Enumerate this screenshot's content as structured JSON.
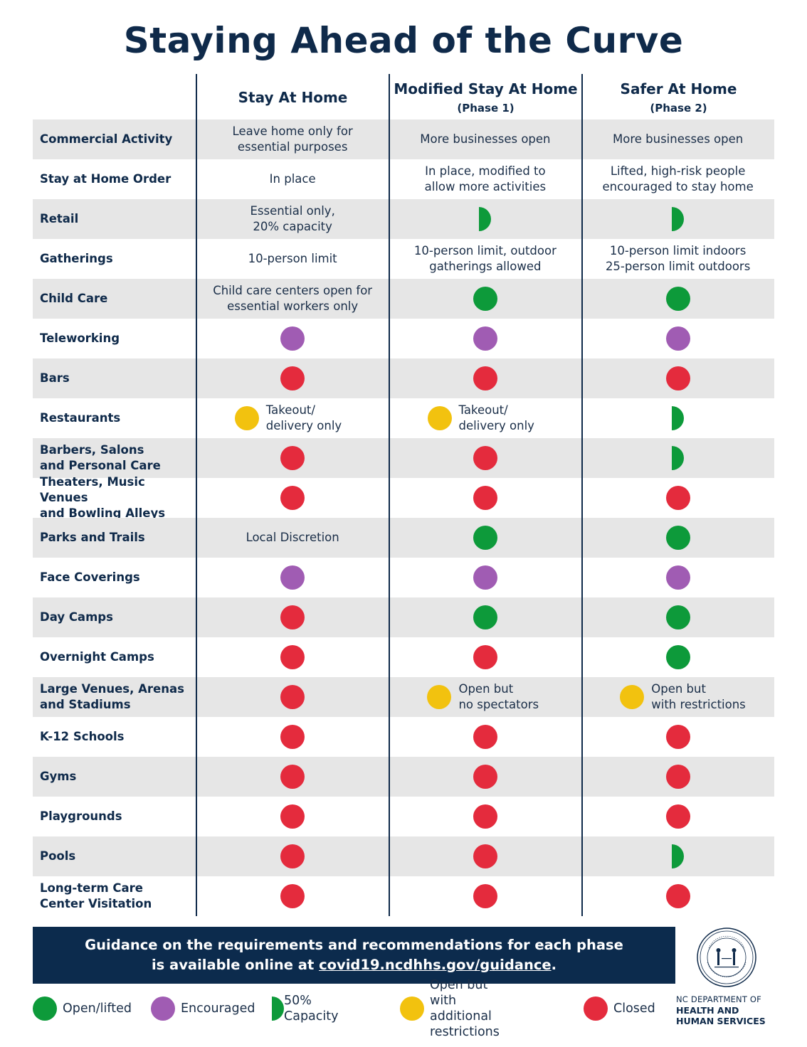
{
  "title": "Staying Ahead of the Curve",
  "columns": [
    {
      "label": "Stay At Home",
      "sub": ""
    },
    {
      "label": "Modified Stay At Home",
      "sub": "(Phase 1)"
    },
    {
      "label": "Safer At Home",
      "sub": "(Phase 2)"
    }
  ],
  "rows": [
    {
      "label": "Commercial Activity",
      "cells": [
        {
          "text": "Leave home only for\nessential purposes"
        },
        {
          "text": "More businesses open"
        },
        {
          "text": "More businesses open"
        }
      ]
    },
    {
      "label": "Stay at Home Order",
      "cells": [
        {
          "text": "In place"
        },
        {
          "text": "In place, modified to\nallow more activities"
        },
        {
          "text": "Lifted, high-risk people\nencouraged to stay home"
        }
      ]
    },
    {
      "label": "Retail",
      "cells": [
        {
          "text": "Essential only,\n20% capacity"
        },
        {
          "status": "half"
        },
        {
          "status": "half"
        }
      ]
    },
    {
      "label": "Gatherings",
      "cells": [
        {
          "text": "10-person limit"
        },
        {
          "text": "10-person limit, outdoor\ngatherings allowed"
        },
        {
          "text": "10-person limit indoors\n25-person limit outdoors"
        }
      ]
    },
    {
      "label": "Child Care",
      "cells": [
        {
          "text": "Child care centers open for\nessential workers only"
        },
        {
          "status": "green"
        },
        {
          "status": "green"
        }
      ]
    },
    {
      "label": "Teleworking",
      "cells": [
        {
          "status": "purple"
        },
        {
          "status": "purple"
        },
        {
          "status": "purple"
        }
      ]
    },
    {
      "label": "Bars",
      "cells": [
        {
          "status": "red"
        },
        {
          "status": "red"
        },
        {
          "status": "red"
        }
      ]
    },
    {
      "label": "Restaurants",
      "cells": [
        {
          "status": "yellow",
          "text": "Takeout/\ndelivery only"
        },
        {
          "status": "yellow",
          "text": "Takeout/\ndelivery only"
        },
        {
          "status": "half"
        }
      ]
    },
    {
      "label": "Barbers, Salons\nand Personal Care",
      "cells": [
        {
          "status": "red"
        },
        {
          "status": "red"
        },
        {
          "status": "half"
        }
      ]
    },
    {
      "label": "Theaters, Music Venues\nand Bowling Alleys",
      "cells": [
        {
          "status": "red"
        },
        {
          "status": "red"
        },
        {
          "status": "red"
        }
      ]
    },
    {
      "label": "Parks and Trails",
      "cells": [
        {
          "text": "Local Discretion"
        },
        {
          "status": "green"
        },
        {
          "status": "green"
        }
      ]
    },
    {
      "label": "Face Coverings",
      "cells": [
        {
          "status": "purple"
        },
        {
          "status": "purple"
        },
        {
          "status": "purple"
        }
      ]
    },
    {
      "label": "Day Camps",
      "cells": [
        {
          "status": "red"
        },
        {
          "status": "green"
        },
        {
          "status": "green"
        }
      ]
    },
    {
      "label": "Overnight Camps",
      "cells": [
        {
          "status": "red"
        },
        {
          "status": "red"
        },
        {
          "status": "green"
        }
      ]
    },
    {
      "label": "Large Venues, Arenas\nand Stadiums",
      "cells": [
        {
          "status": "red"
        },
        {
          "status": "yellow",
          "text": "Open but\nno spectators"
        },
        {
          "status": "yellow",
          "text": "Open but\nwith restrictions"
        }
      ]
    },
    {
      "label": "K-12 Schools",
      "cells": [
        {
          "status": "red"
        },
        {
          "status": "red"
        },
        {
          "status": "red"
        }
      ]
    },
    {
      "label": "Gyms",
      "cells": [
        {
          "status": "red"
        },
        {
          "status": "red"
        },
        {
          "status": "red"
        }
      ]
    },
    {
      "label": "Playgrounds",
      "cells": [
        {
          "status": "red"
        },
        {
          "status": "red"
        },
        {
          "status": "red"
        }
      ]
    },
    {
      "label": "Pools",
      "cells": [
        {
          "status": "red"
        },
        {
          "status": "red"
        },
        {
          "status": "half"
        }
      ]
    },
    {
      "label": "Long-term Care\nCenter Visitation",
      "cells": [
        {
          "status": "red"
        },
        {
          "status": "red"
        },
        {
          "status": "red"
        }
      ]
    }
  ],
  "banner": {
    "line1": "Guidance on the requirements and recommendations for each phase",
    "line2_prefix": "is available online at ",
    "link": "covid19.ncdhhs.gov/guidance",
    "line2_suffix": "."
  },
  "legend": [
    {
      "status": "green",
      "label": "Open/lifted"
    },
    {
      "status": "purple",
      "label": "Encouraged"
    },
    {
      "status": "half",
      "label": "50% Capacity"
    },
    {
      "status": "yellow",
      "label": "Open but with\nadditional restrictions"
    },
    {
      "status": "red",
      "label": "Closed"
    }
  ],
  "department": {
    "line1": "NC DEPARTMENT OF",
    "line2": "HEALTH AND",
    "line3": "HUMAN SERVICES"
  },
  "colors": {
    "navy": "#0f2a4a",
    "green": "#0d9a3a",
    "purple": "#a05cb3",
    "red": "#e42b3d",
    "yellow": "#f2c20f",
    "shade": "#e6e6e6"
  }
}
